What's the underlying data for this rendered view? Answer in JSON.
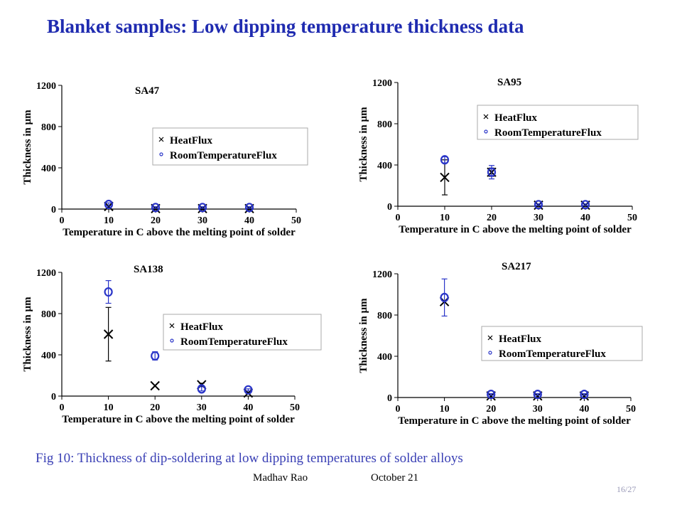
{
  "page": {
    "title": "Blanket samples: Low dipping temperature thickness data",
    "caption": "Fig 10: Thickness of dip-soldering at low dipping temperatures of solder alloys",
    "author": "Madhav Rao",
    "date": "October 21",
    "page_number": "16/27"
  },
  "colors": {
    "title": "#1f2bb0",
    "room_flux": "#2a35c8",
    "heat_flux": "#000000",
    "caption": "#3a40b5"
  },
  "chart_data": [
    {
      "type": "scatter",
      "title": "SA47",
      "xlabel": "Temperature in C above the melting point of solder",
      "ylabel": "Thickness in µm",
      "xlim": [
        0,
        50
      ],
      "ylim": [
        0,
        1200
      ],
      "xticks": [
        0,
        10,
        20,
        30,
        40,
        50
      ],
      "yticks": [
        0,
        400,
        800,
        1200
      ],
      "legend_position": "center-right",
      "series": [
        {
          "name": "HeatFlux",
          "marker": "x",
          "x": [
            10,
            20,
            30,
            40
          ],
          "y": [
            25,
            5,
            5,
            5
          ],
          "err": [
            0,
            0,
            0,
            0
          ]
        },
        {
          "name": "RoomTemperatureFlux",
          "marker": "o",
          "x": [
            10,
            20,
            30,
            40
          ],
          "y": [
            45,
            15,
            15,
            15
          ],
          "err": [
            15,
            8,
            8,
            8
          ]
        }
      ]
    },
    {
      "type": "scatter",
      "title": "SA95",
      "xlabel": "Temperature in C above the melting point of solder",
      "ylabel": "Thickness in µm",
      "xlim": [
        0,
        50
      ],
      "ylim": [
        0,
        1200
      ],
      "xticks": [
        0,
        10,
        20,
        30,
        40,
        50
      ],
      "yticks": [
        0,
        400,
        800,
        1200
      ],
      "legend_position": "top-right",
      "series": [
        {
          "name": "HeatFlux",
          "marker": "x",
          "x": [
            10,
            20,
            30,
            40
          ],
          "y": [
            280,
            330,
            10,
            10
          ],
          "err": [
            170,
            40,
            0,
            0
          ]
        },
        {
          "name": "RoomTemperatureFlux",
          "marker": "o",
          "x": [
            10,
            20,
            30,
            40
          ],
          "y": [
            450,
            330,
            15,
            15
          ],
          "err": [
            30,
            65,
            8,
            8
          ]
        }
      ]
    },
    {
      "type": "scatter",
      "title": "SA138",
      "xlabel": "Temperature in C above the melting point of solder",
      "ylabel": "Thickness in µm",
      "xlim": [
        0,
        50
      ],
      "ylim": [
        0,
        1200
      ],
      "xticks": [
        0,
        10,
        20,
        30,
        40,
        50
      ],
      "yticks": [
        0,
        400,
        800,
        1200
      ],
      "legend_position": "center-right",
      "series": [
        {
          "name": "HeatFlux",
          "marker": "x",
          "x": [
            10,
            20,
            30,
            40
          ],
          "y": [
            600,
            100,
            110,
            30
          ],
          "err": [
            260,
            0,
            15,
            0
          ]
        },
        {
          "name": "RoomTemperatureFlux",
          "marker": "o",
          "x": [
            10,
            20,
            30,
            40
          ],
          "y": [
            1010,
            390,
            70,
            60
          ],
          "err": [
            110,
            40,
            20,
            10
          ]
        }
      ]
    },
    {
      "type": "scatter",
      "title": "SA217",
      "xlabel": "Temperature in C above the melting point of solder",
      "ylabel": "Thickness in µm",
      "xlim": [
        0,
        50
      ],
      "ylim": [
        0,
        1200
      ],
      "xticks": [
        0,
        10,
        20,
        30,
        40,
        50
      ],
      "yticks": [
        0,
        400,
        800,
        1200
      ],
      "legend_position": "center-right",
      "series": [
        {
          "name": "HeatFlux",
          "marker": "x",
          "x": [
            10,
            20,
            30,
            40
          ],
          "y": [
            930,
            15,
            15,
            15
          ],
          "err": [
            0,
            0,
            0,
            0
          ]
        },
        {
          "name": "RoomTemperatureFlux",
          "marker": "o",
          "x": [
            10,
            20,
            30,
            40
          ],
          "y": [
            970,
            30,
            30,
            30
          ],
          "err": [
            180,
            8,
            8,
            8
          ]
        }
      ]
    }
  ]
}
